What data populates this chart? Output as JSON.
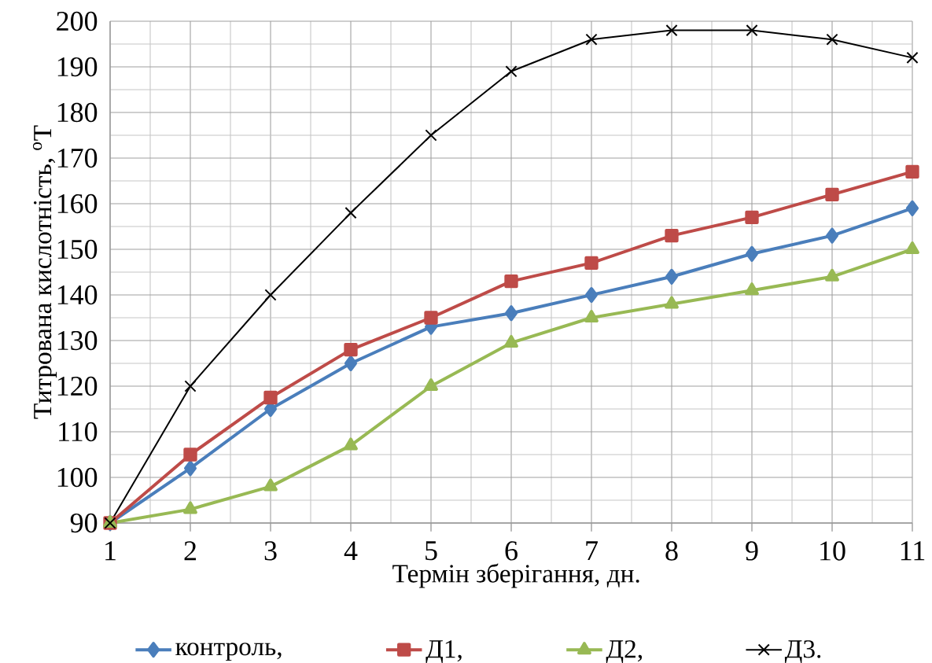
{
  "chart_data": {
    "type": "line",
    "xlabel": "Термін зберігання, дн.",
    "ylabel": "Титрована кислотність, $^{o}$Т",
    "x": [
      1,
      2,
      3,
      4,
      5,
      6,
      7,
      8,
      9,
      10,
      11
    ],
    "xlim": [
      1,
      11
    ],
    "xticks": [
      1,
      2,
      3,
      4,
      5,
      6,
      7,
      8,
      9,
      10,
      11
    ],
    "ylim": [
      90,
      200
    ],
    "yticks": [
      90,
      100,
      110,
      120,
      130,
      140,
      150,
      160,
      170,
      180,
      190,
      200
    ],
    "grid": true,
    "legend": "bottom",
    "series": [
      {
        "name": "контроль,",
        "color": "#4a7ebb",
        "marker": "diamond",
        "values": [
          90,
          102,
          115,
          125,
          133,
          136,
          140,
          144,
          149,
          153,
          159
        ]
      },
      {
        "name": "Д1,",
        "color": "#be4b48",
        "marker": "square",
        "values": [
          90,
          105,
          117.5,
          128,
          135,
          143,
          147,
          153,
          157,
          162,
          167
        ]
      },
      {
        "name": "Д2,",
        "color": "#98b954",
        "marker": "triangle",
        "values": [
          90,
          93,
          98,
          107,
          120,
          129.5,
          135,
          138,
          141,
          144,
          150
        ]
      },
      {
        "name": "Д3.",
        "color": "#000000",
        "marker": "cross",
        "values": [
          90,
          120,
          140,
          158,
          175,
          189,
          196,
          198,
          198,
          196,
          192
        ]
      }
    ]
  }
}
